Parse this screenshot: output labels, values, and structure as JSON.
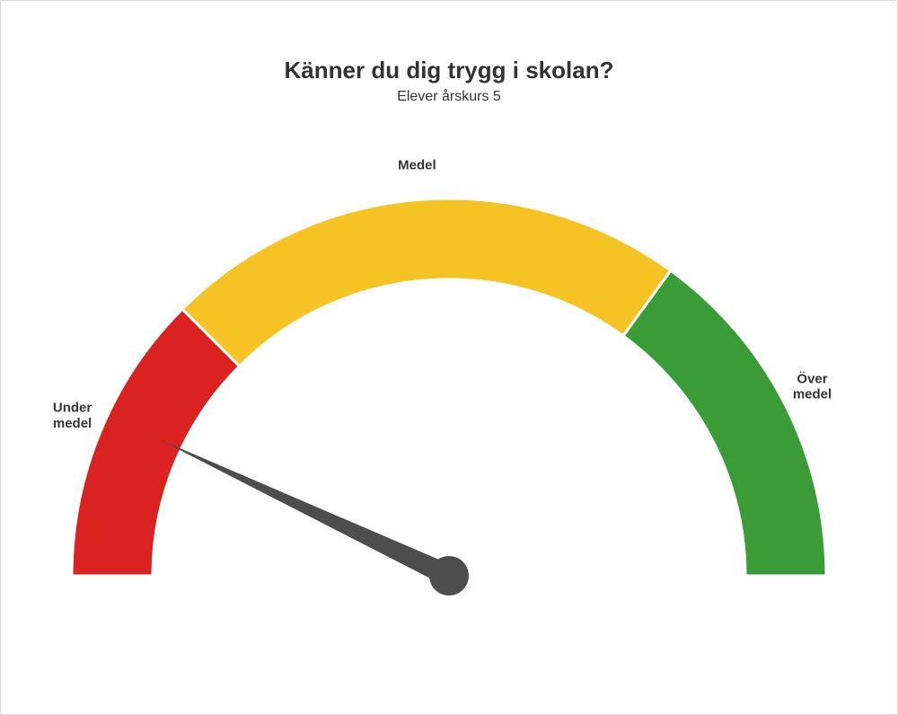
{
  "title": "Känner du dig trygg i skolan?",
  "subtitle": "Elever årskurs 5",
  "title_fontsize": 26,
  "subtitle_fontsize": 16,
  "title_color": "#333333",
  "subtitle_color": "#333333",
  "frame_border_color": "#d9d9d9",
  "background_color": "#ffffff",
  "gauge": {
    "type": "gauge",
    "outer_radius": 420,
    "inner_radius": 330,
    "needle_value": 0.14,
    "needle_color": "#4d4d4d",
    "needle_base_radius": 22,
    "needle_length": 360,
    "segments": [
      {
        "start": 0.0,
        "end": 0.25,
        "color": "#da2221",
        "label": "Under\nmedel"
      },
      {
        "start": 0.25,
        "end": 0.7,
        "color": "#f6c325",
        "label": "Medel"
      },
      {
        "start": 0.7,
        "end": 1.0,
        "color": "#3a9c36",
        "label": "Över\nmedel"
      }
    ],
    "seg_divider_color": "#ffffff",
    "seg_divider_width": 3,
    "label_fontsize": 15,
    "label_offset": 34
  }
}
